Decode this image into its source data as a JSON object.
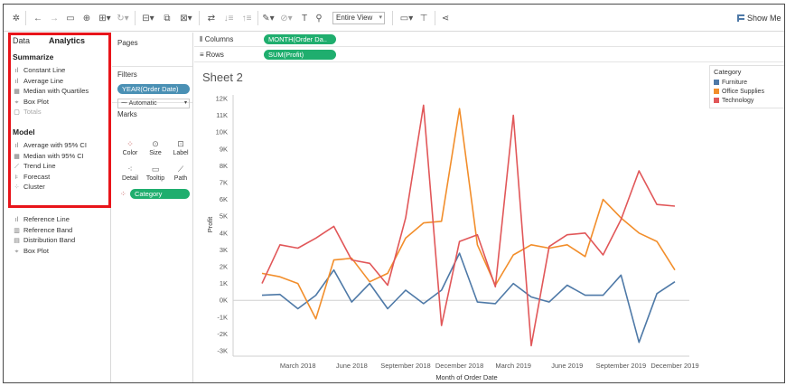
{
  "toolbar": {
    "view_mode": "Entire View",
    "show_me": "Show Me"
  },
  "left_pane": {
    "tabs": [
      "Data",
      "Analytics"
    ],
    "sections": [
      {
        "title": "Summarize",
        "items": [
          {
            "label": "Constant Line",
            "icon": "constant-line-icon"
          },
          {
            "label": "Average Line",
            "icon": "average-line-icon"
          },
          {
            "label": "Median with Quartiles",
            "icon": "median-quartiles-icon"
          },
          {
            "label": "Box Plot",
            "icon": "box-plot-icon"
          },
          {
            "label": "Totals",
            "icon": "totals-icon"
          }
        ]
      },
      {
        "title": "Model",
        "items": [
          {
            "label": "Average with 95% CI",
            "icon": "average-ci-icon"
          },
          {
            "label": "Median with 95% CI",
            "icon": "median-ci-icon"
          },
          {
            "label": "Trend Line",
            "icon": "trend-line-icon"
          },
          {
            "label": "Forecast",
            "icon": "forecast-icon"
          },
          {
            "label": "Cluster",
            "icon": "cluster-icon"
          }
        ]
      },
      {
        "title": "",
        "items": [
          {
            "label": "Reference Line",
            "icon": "reference-line-icon"
          },
          {
            "label": "Reference Band",
            "icon": "reference-band-icon"
          },
          {
            "label": "Distribution Band",
            "icon": "distribution-band-icon"
          },
          {
            "label": "Box Plot",
            "icon": "box-plot-icon"
          }
        ]
      }
    ]
  },
  "shelves": {
    "pages_title": "Pages",
    "filters_title": "Filters",
    "filter_pill": "YEAR(Order Date)",
    "marks_title": "Marks",
    "mark_type": "Automatic",
    "mark_buttons": [
      "Color",
      "Size",
      "Label",
      "Detail",
      "Tooltip",
      "Path"
    ],
    "color_pill": "Category"
  },
  "columns": {
    "label": "Columns",
    "pill": "MONTH(Order Da.."
  },
  "rows": {
    "label": "Rows",
    "pill": "SUM(Profit)"
  },
  "sheet": {
    "title": "Sheet 2"
  },
  "legend": {
    "title": "Category",
    "items": [
      {
        "label": "Furniture",
        "color": "#4e79a7"
      },
      {
        "label": "Office Supplies",
        "color": "#f28e2b"
      },
      {
        "label": "Technology",
        "color": "#e15759"
      }
    ]
  },
  "chart_data": {
    "type": "line",
    "xlabel": "Month of Order Date",
    "ylabel": "Profit",
    "ylim": [
      -3000,
      12000
    ],
    "yticks": [
      12000,
      11000,
      10000,
      9000,
      8000,
      7000,
      6000,
      5000,
      4000,
      3000,
      2000,
      1000,
      0,
      -1000,
      -2000,
      -3000
    ],
    "ytick_labels": [
      "12K",
      "11K",
      "10K",
      "9K",
      "8K",
      "7K",
      "6K",
      "5K",
      "4K",
      "3K",
      "2K",
      "1K",
      "0K",
      "-1K",
      "-2K",
      "-3K"
    ],
    "x_tick_labels": [
      {
        "label": "March 2018",
        "index": 2
      },
      {
        "label": "June 2018",
        "index": 5
      },
      {
        "label": "September 2018",
        "index": 8
      },
      {
        "label": "December 2018",
        "index": 11
      },
      {
        "label": "March 2019",
        "index": 14
      },
      {
        "label": "June 2019",
        "index": 17
      },
      {
        "label": "September 2019",
        "index": 20
      },
      {
        "label": "December 2019",
        "index": 23
      }
    ],
    "x": [
      "Jan 2018",
      "Feb 2018",
      "Mar 2018",
      "Apr 2018",
      "May 2018",
      "Jun 2018",
      "Jul 2018",
      "Aug 2018",
      "Sep 2018",
      "Oct 2018",
      "Nov 2018",
      "Dec 2018",
      "Jan 2019",
      "Feb 2019",
      "Mar 2019",
      "Apr 2019",
      "May 2019",
      "Jun 2019",
      "Jul 2019",
      "Aug 2019",
      "Sep 2019",
      "Oct 2019",
      "Nov 2019",
      "Dec 2019"
    ],
    "series": [
      {
        "name": "Furniture",
        "color": "#4e79a7",
        "values": [
          300,
          350,
          -500,
          300,
          1800,
          -100,
          1000,
          -500,
          600,
          -200,
          600,
          2800,
          -100,
          -200,
          1000,
          200,
          -100,
          900,
          300,
          300,
          1500,
          -2500,
          400,
          1100
        ]
      },
      {
        "name": "Office Supplies",
        "color": "#f28e2b",
        "values": [
          1600,
          1400,
          1000,
          -1100,
          2400,
          2500,
          1100,
          1600,
          3700,
          4600,
          4700,
          11400,
          3300,
          900,
          2700,
          3300,
          3100,
          3300,
          2600,
          6000,
          4900,
          4000,
          3500,
          1800
        ]
      },
      {
        "name": "Technology",
        "color": "#e15759",
        "values": [
          1000,
          3300,
          3100,
          3700,
          4400,
          2400,
          2200,
          900,
          4900,
          11600,
          -1500,
          3500,
          3900,
          800,
          11000,
          -2700,
          3200,
          3900,
          4000,
          2700,
          4800,
          7700,
          5700,
          5600
        ]
      }
    ]
  }
}
